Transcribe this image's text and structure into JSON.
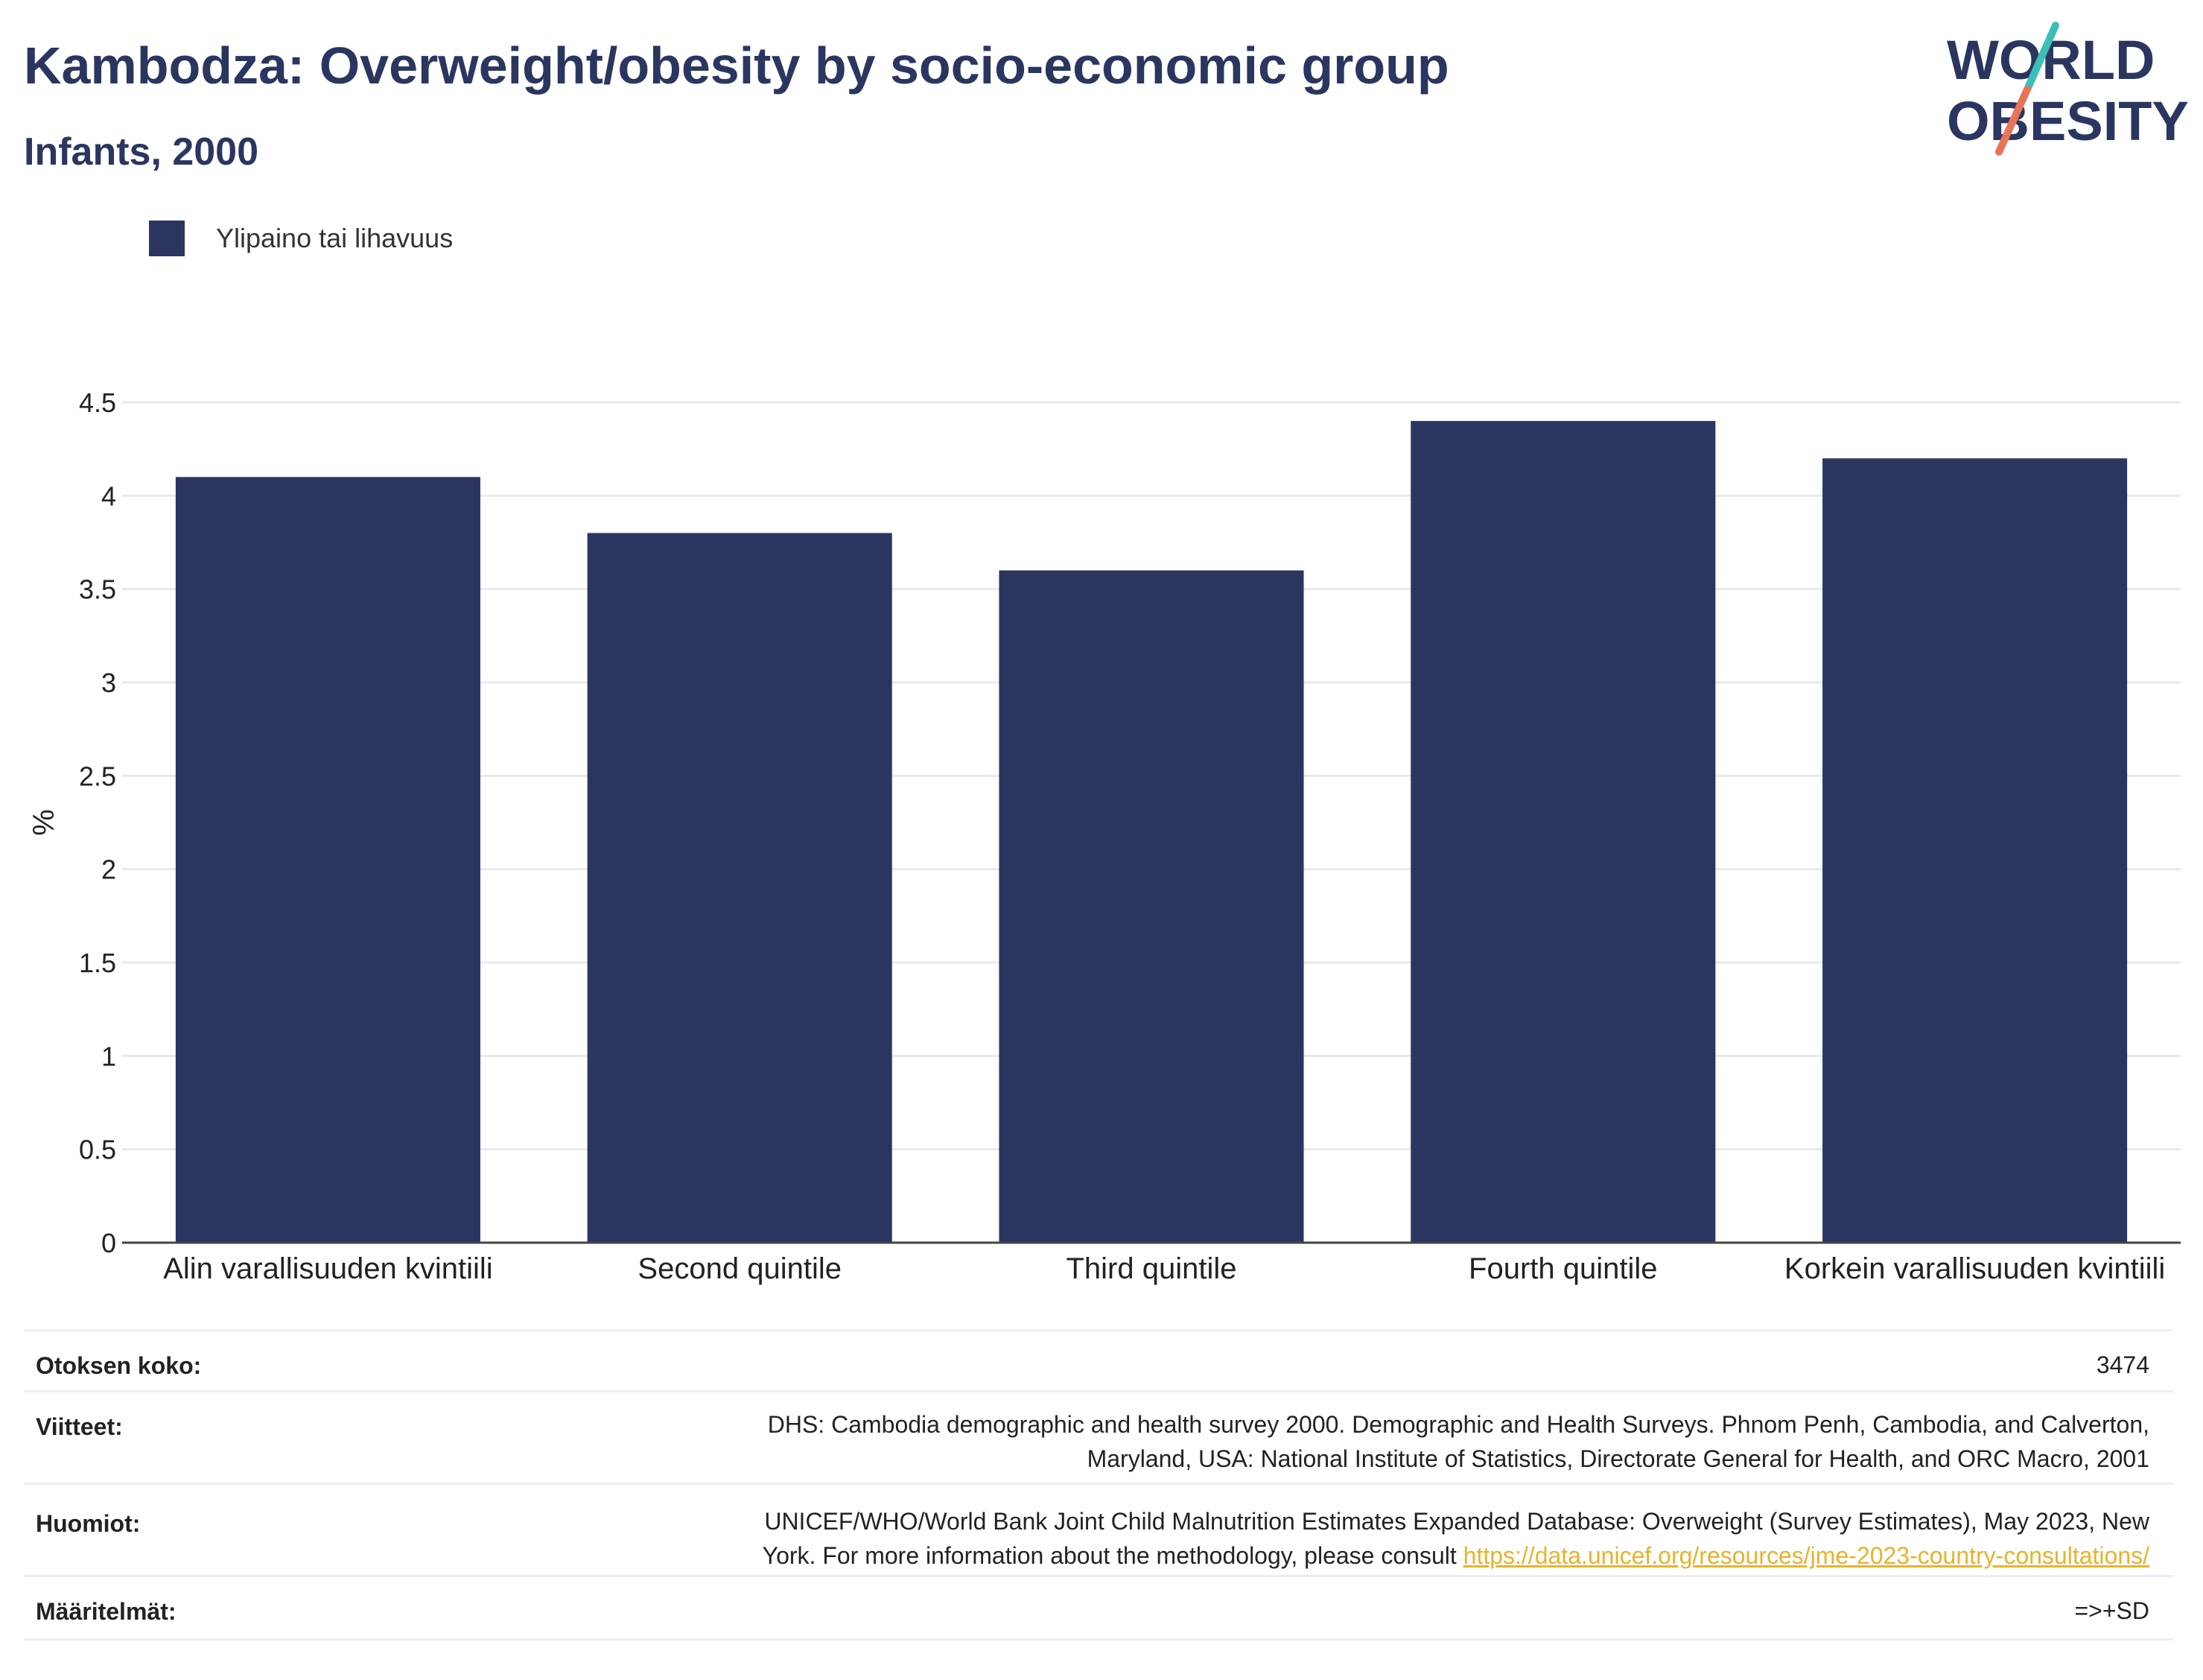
{
  "header": {
    "title": "Kambodza: Overweight/obesity by socio-economic group",
    "subtitle": "Infants, 2000"
  },
  "logo": {
    "line1": "WORLD",
    "line2": "OBESITY",
    "colors": {
      "text": "#2b3660",
      "slash_top": "#3bbfb6",
      "slash_bottom": "#e8735a"
    }
  },
  "legend": {
    "label": "Ylipaino tai lihavuus",
    "color": "#2b3660"
  },
  "chart_data": {
    "type": "bar",
    "categories": [
      "Alin varallisuuden kvintiili",
      "Second quintile",
      "Third quintile",
      "Fourth quintile",
      "Korkein varallisuuden kvintiili"
    ],
    "series": [
      {
        "name": "Ylipaino tai lihavuus",
        "values": [
          4.1,
          3.8,
          3.6,
          4.4,
          4.2
        ],
        "color": "#2b3660"
      }
    ],
    "ylabel": "%",
    "ylim": [
      0,
      4.5
    ],
    "yticks": [
      0,
      0.5,
      1,
      1.5,
      2,
      2.5,
      3,
      3.5,
      4,
      4.5
    ],
    "ytick_labels": [
      "0",
      "0.5",
      "1",
      "1.5",
      "2",
      "2.5",
      "3",
      "3.5",
      "4",
      "4.5"
    ],
    "grid": true,
    "legend_position": "top-left"
  },
  "info": {
    "sample_label": "Otoksen koko:",
    "sample_value": "3474",
    "refs_label": "Viitteet:",
    "refs_line1": "DHS: Cambodia demographic and health survey 2000. Demographic and Health Surveys. Phnom Penh, Cambodia, and Calverton,",
    "refs_line2": "Maryland, USA: National Institute of Statistics, Directorate General for Health, and ORC Macro, 2001",
    "notes_label": "Huomiot:",
    "notes_line1": "UNICEF/WHO/World Bank Joint Child Malnutrition Estimates Expanded Database: Overweight (Survey Estimates), May 2023, New",
    "notes_line2": "York. For more information about the methodology, please consult ",
    "notes_link": "https://data.unicef.org/resources/jme-2023-country-consultations/",
    "defs_label": "Määritelmät:",
    "defs_value": "=>+SD"
  }
}
